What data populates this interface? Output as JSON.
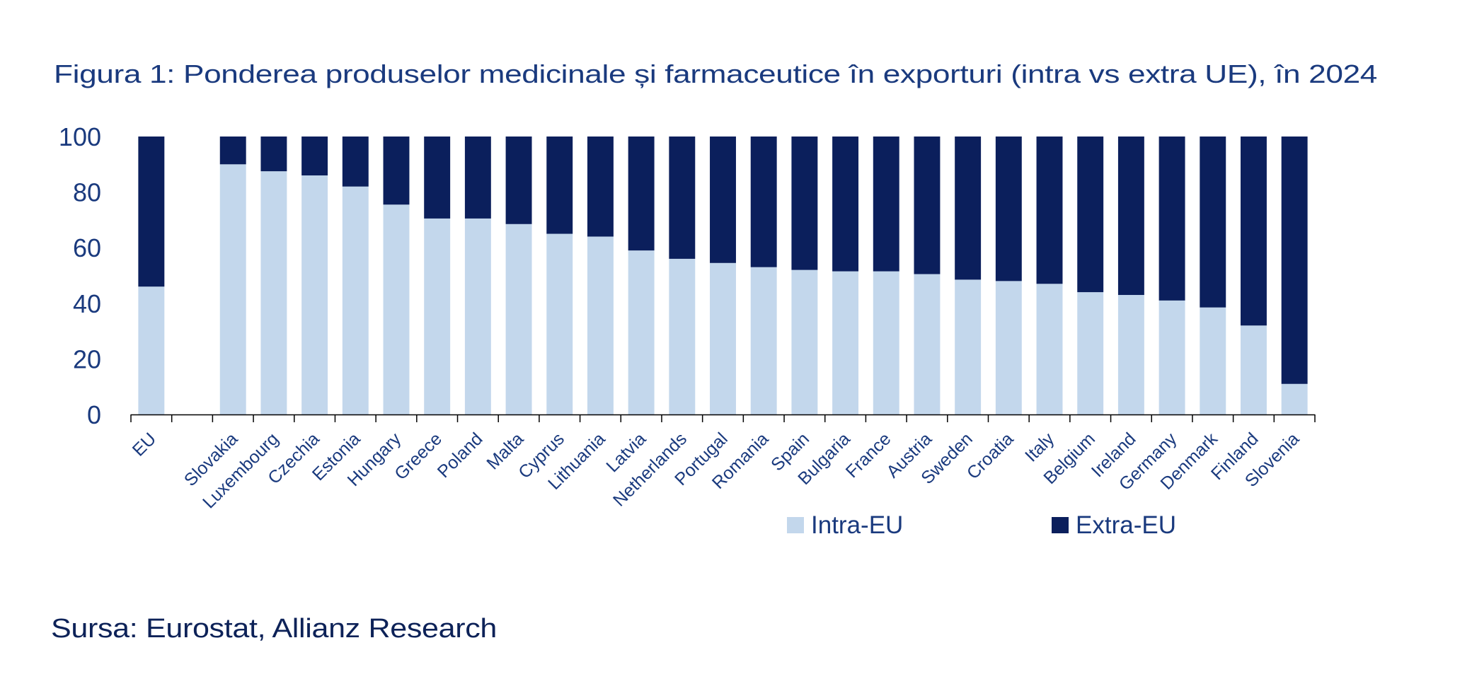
{
  "title": "Figura 1: Ponderea produselor medicinale și farmaceutice în exporturi (intra vs extra UE), în 2024",
  "source": "Sursa: Eurostat, Allianz Research",
  "colors": {
    "intra": "#c3d7ec",
    "extra": "#0b1f5c",
    "text": "#1a3a7e",
    "axis": "#000000"
  },
  "chart_data": {
    "type": "bar",
    "stacked": true,
    "title": "Figura 1: Ponderea produselor medicinale și farmaceutice în exporturi (intra vs extra UE), în 2024",
    "xlabel": "",
    "ylabel": "",
    "ylim": [
      0,
      100
    ],
    "yticks": [
      0,
      20,
      40,
      60,
      80,
      100
    ],
    "grid": false,
    "legend_position": "bottom-right",
    "categories": [
      "EU",
      "",
      "Slovakia",
      "Luxembourg",
      "Czechia",
      "Estonia",
      "Hungary",
      "Greece",
      "Poland",
      "Malta",
      "Cyprus",
      "Lithuania",
      "Latvia",
      "Netherlands",
      "Portugal",
      "Romania",
      "Spain",
      "Bulgaria",
      "France",
      "Austria",
      "Sweden",
      "Croatia",
      "Italy",
      "Belgium",
      "Ireland",
      "Germany",
      "Denmark",
      "Finland",
      "Slovenia"
    ],
    "series": [
      {
        "name": "Intra-EU",
        "values": [
          46,
          null,
          90,
          87.5,
          86,
          82,
          75.5,
          70.5,
          70.5,
          68.5,
          65,
          64,
          59,
          56,
          54.5,
          53,
          52,
          51.5,
          51.5,
          50.5,
          48.5,
          48,
          47,
          44,
          43,
          41,
          38.5,
          32,
          11
        ]
      },
      {
        "name": "Extra-EU",
        "values": [
          54,
          null,
          10,
          12.5,
          14,
          18,
          24.5,
          29.5,
          29.5,
          31.5,
          35,
          36,
          41,
          44,
          45.5,
          47,
          48,
          48.5,
          48.5,
          49.5,
          51.5,
          52,
          53,
          56,
          57,
          59,
          61.5,
          68,
          89
        ]
      }
    ]
  }
}
